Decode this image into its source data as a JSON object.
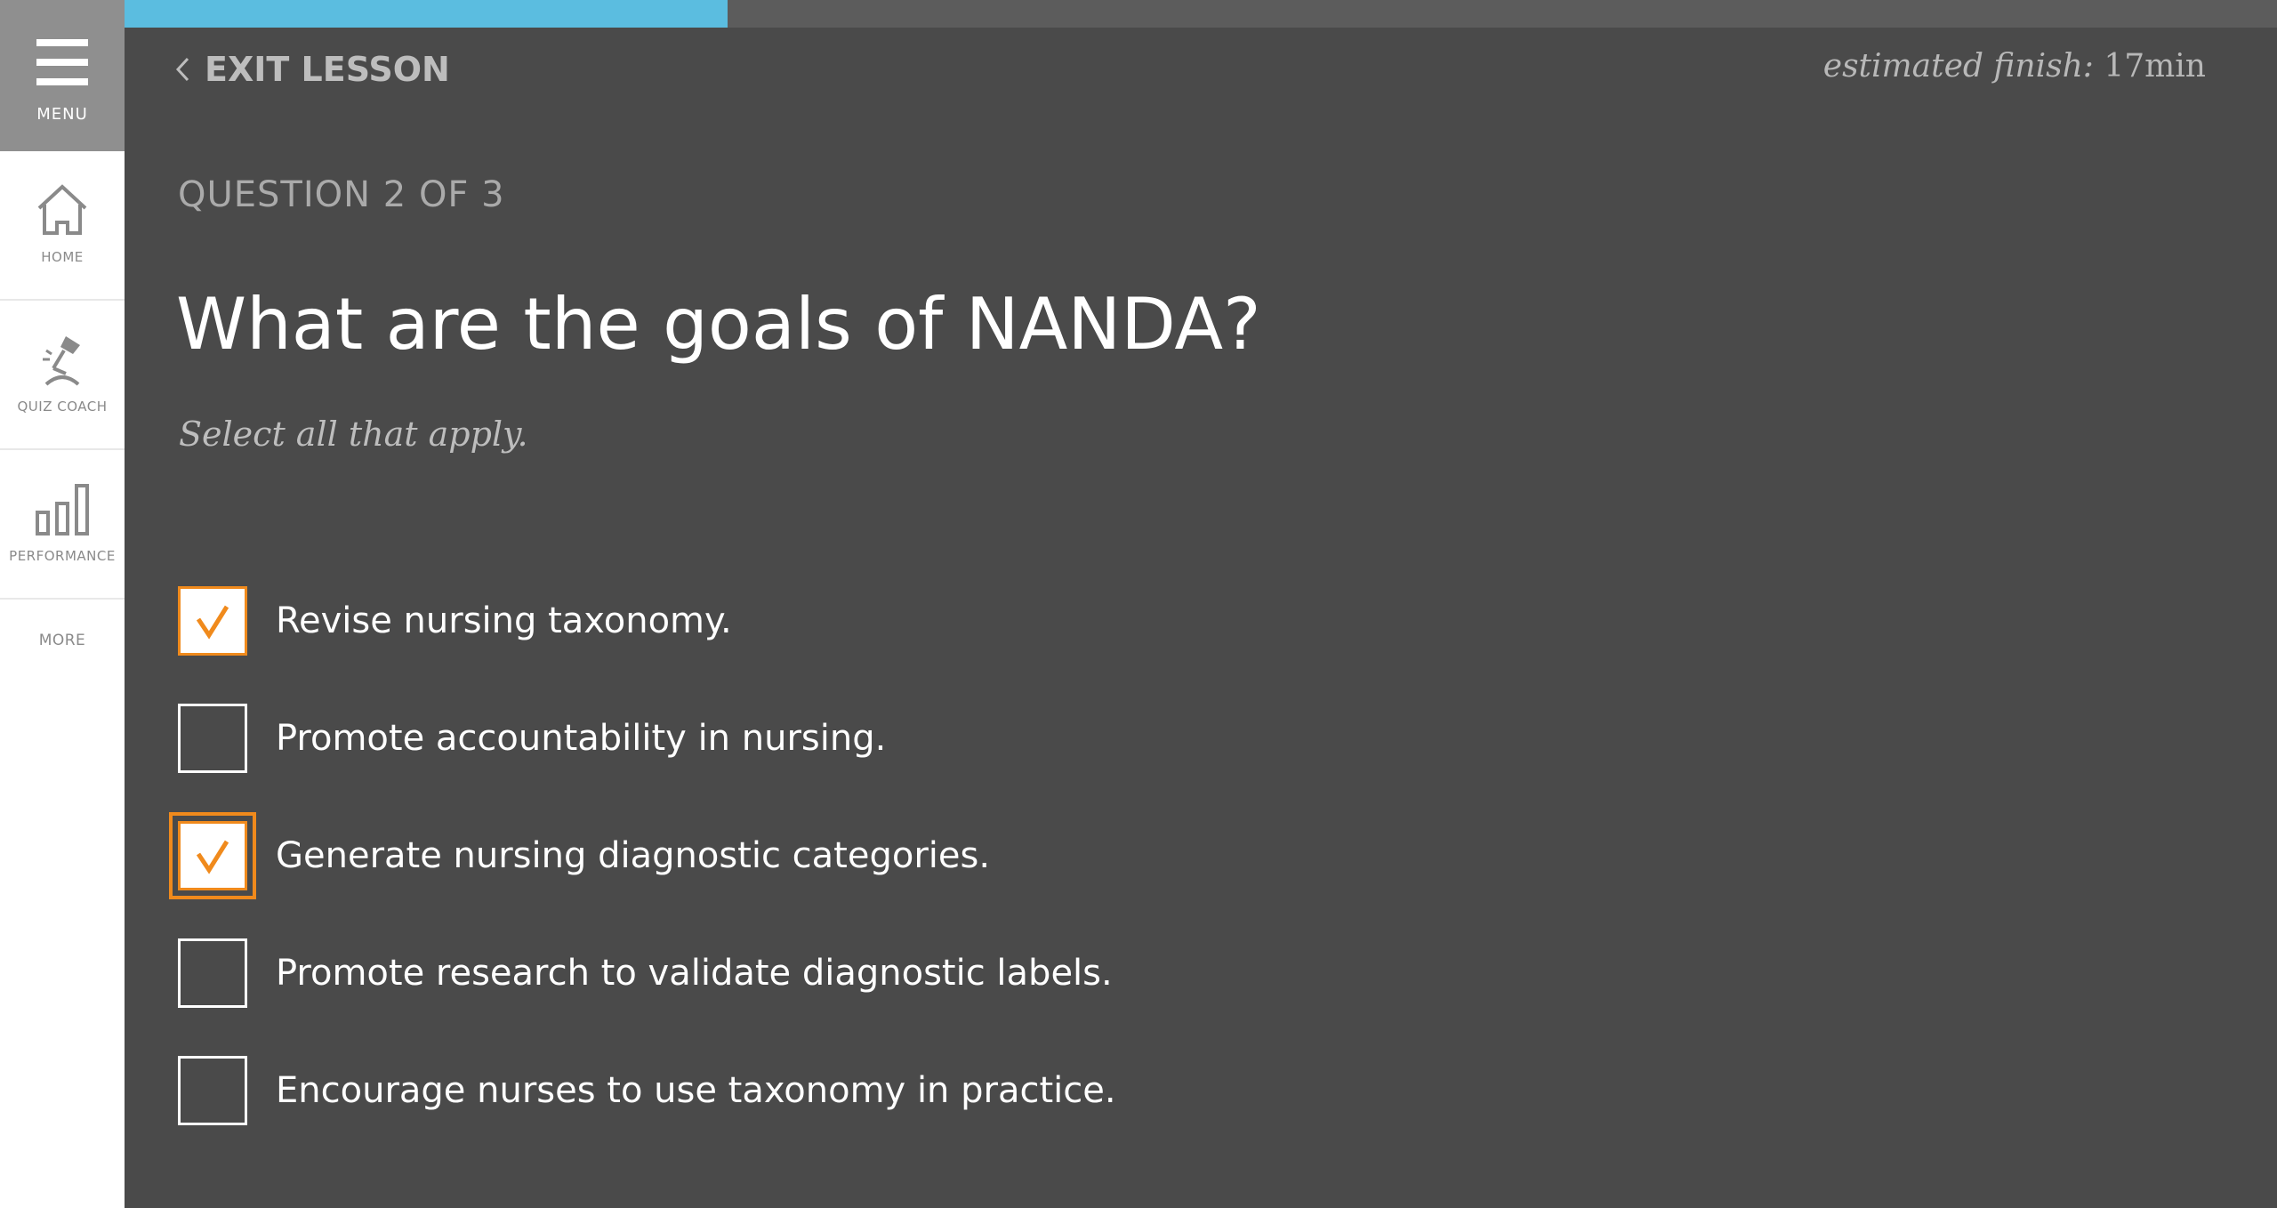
{
  "sidebar": {
    "menu_label": "MENU",
    "items": [
      {
        "label": "HOME",
        "icon": "home-icon"
      },
      {
        "label": "QUIZ COACH",
        "icon": "quiz-coach-icon"
      },
      {
        "label": "PERFORMANCE",
        "icon": "bar-chart-icon"
      },
      {
        "label": "MORE"
      }
    ]
  },
  "progress": {
    "fraction": 0.28,
    "color": "#5bbde0"
  },
  "header": {
    "exit_label": "EXIT LESSON",
    "estimate_label": "estimated finish:",
    "estimate_value": "17min"
  },
  "question": {
    "count": "QUESTION 2 OF 3",
    "title": "What are the goals of NANDA?",
    "instruction": "Select all that apply."
  },
  "options": [
    {
      "text": "Revise nursing taxonomy.",
      "checked": true
    },
    {
      "text": "Promote accountability in nursing.",
      "checked": false
    },
    {
      "text": "Generate nursing diagnostic categories.",
      "checked": true,
      "focused": true
    },
    {
      "text": "Promote research to validate diagnostic labels.",
      "checked": false
    },
    {
      "text": "Encourage nurses to use taxonomy in practice.",
      "checked": false
    }
  ],
  "colors": {
    "accent": "#f08a1c",
    "background": "#4a4a4a"
  }
}
